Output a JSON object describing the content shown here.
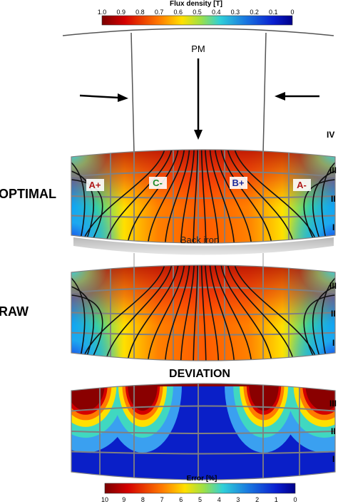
{
  "flux_colorbar": {
    "title": "Flux density [T]",
    "ticks": [
      "1.0",
      "0.9",
      "0.8",
      "0.7",
      "0.6",
      "0.5",
      "0.4",
      "0.3",
      "0.2",
      "0.1",
      "0"
    ]
  },
  "error_colorbar": {
    "title": "Error [%]",
    "ticks": [
      "10",
      "9",
      "8",
      "7",
      "6",
      "5",
      "4",
      "3",
      "2",
      "1",
      "0"
    ]
  },
  "pm_label": "PM",
  "back_iron_label": "Back iron",
  "panels": {
    "optimal": "OPTIMAL",
    "raw": "RAW",
    "deviation": "DEVIATION"
  },
  "zones": {
    "iv": "IV",
    "iii": "III",
    "ii": "II",
    "i": "I"
  },
  "phases": {
    "a_plus": "A+",
    "c_minus": "C-",
    "b_plus": "B+",
    "a_minus": "A-"
  },
  "colors": {
    "a_phase": "#b01818",
    "c_phase": "#1a8a2a",
    "b_phase": "#1a2a9a",
    "grid": "#808080"
  }
}
